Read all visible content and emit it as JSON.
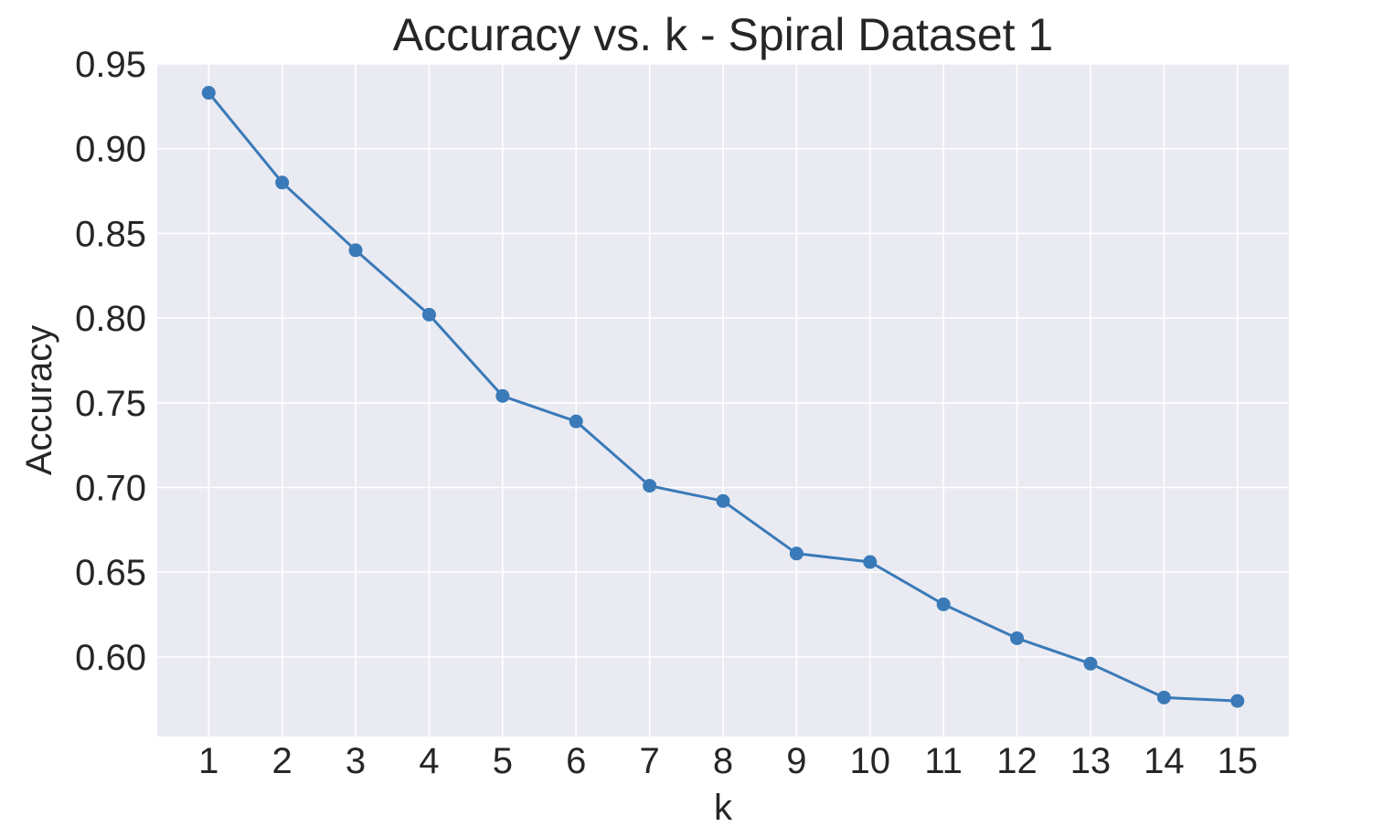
{
  "chart_data": {
    "type": "line",
    "title": "Accuracy vs. k - Spiral Dataset 1",
    "xlabel": "k",
    "ylabel": "Accuracy",
    "x": [
      1,
      2,
      3,
      4,
      5,
      6,
      7,
      8,
      9,
      10,
      11,
      12,
      13,
      14,
      15
    ],
    "x_tick_labels": [
      "1",
      "2",
      "3",
      "4",
      "5",
      "6",
      "7",
      "8",
      "9",
      "10",
      "11",
      "12",
      "13",
      "14",
      "15"
    ],
    "y_ticks": [
      0.6,
      0.65,
      0.7,
      0.75,
      0.8,
      0.85,
      0.9,
      0.95
    ],
    "y_tick_labels": [
      "0.60",
      "0.65",
      "0.70",
      "0.75",
      "0.80",
      "0.85",
      "0.90",
      "0.95"
    ],
    "xlim": [
      0.3,
      15.7
    ],
    "ylim": [
      0.553,
      0.95
    ],
    "grid": true,
    "series": [
      {
        "values": [
          0.933,
          0.88,
          0.84,
          0.802,
          0.754,
          0.739,
          0.701,
          0.692,
          0.661,
          0.656,
          0.631,
          0.611,
          0.596,
          0.576,
          0.574
        ],
        "color": "#3a7ab8",
        "marker": "circle"
      }
    ],
    "colors": {
      "plot_background": "#eaeaf2",
      "grid": "#ffffff",
      "text": "#262626"
    }
  }
}
